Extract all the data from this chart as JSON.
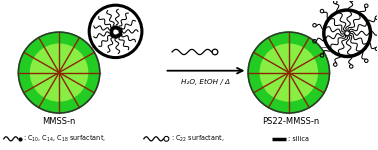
{
  "bg_color": "#ffffff",
  "sphere_outer_color": "#22cc22",
  "sphere_inner_color": "#88ee44",
  "spoke_color": "#8B2500",
  "text_color": "#000000",
  "label_mmss": "MMSS-n",
  "label_ps22": "PS22-MMSS-n",
  "arrow_label": "H₂O, EtOH / Δ",
  "figsize": [
    3.78,
    1.5
  ],
  "dpi": 100,
  "xlim": [
    0,
    10
  ],
  "ylim": [
    0,
    3.97
  ]
}
